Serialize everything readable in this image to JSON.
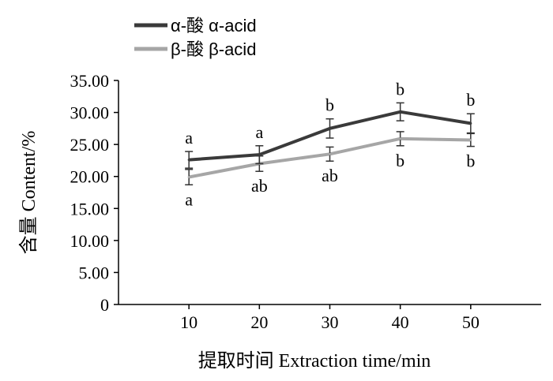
{
  "chart_data": {
    "type": "line",
    "title": "",
    "xlabel": "提取时间 Extraction time/min",
    "ylabel": "含量 Content/%",
    "x": [
      10,
      20,
      30,
      40,
      50
    ],
    "xticks": [
      "10",
      "20",
      "30",
      "40",
      "50"
    ],
    "xlim": [
      0,
      60
    ],
    "ylim": [
      0,
      35
    ],
    "yticks": [
      "0",
      "5.00",
      "10.00",
      "15.00",
      "20.00",
      "25.00",
      "30.00",
      "35.00"
    ],
    "grid": false,
    "legend_position": "top-left",
    "series": [
      {
        "name": "α-酸 α-acid",
        "color": "#3a3a3a",
        "values": [
          22.6,
          23.4,
          27.5,
          30.1,
          28.3
        ],
        "error": [
          1.3,
          1.4,
          1.5,
          1.4,
          1.5
        ],
        "labels": [
          "a",
          "a",
          "b",
          "b",
          "b"
        ],
        "label_position": "above"
      },
      {
        "name": "β-酸 β-acid",
        "color": "#a6a6a6",
        "values": [
          19.9,
          22.0,
          23.5,
          25.9,
          25.7
        ],
        "error": [
          1.2,
          1.2,
          1.1,
          1.1,
          1.0
        ],
        "labels": [
          "a",
          "ab",
          "ab",
          "b",
          "b"
        ],
        "label_position": "below"
      }
    ]
  }
}
